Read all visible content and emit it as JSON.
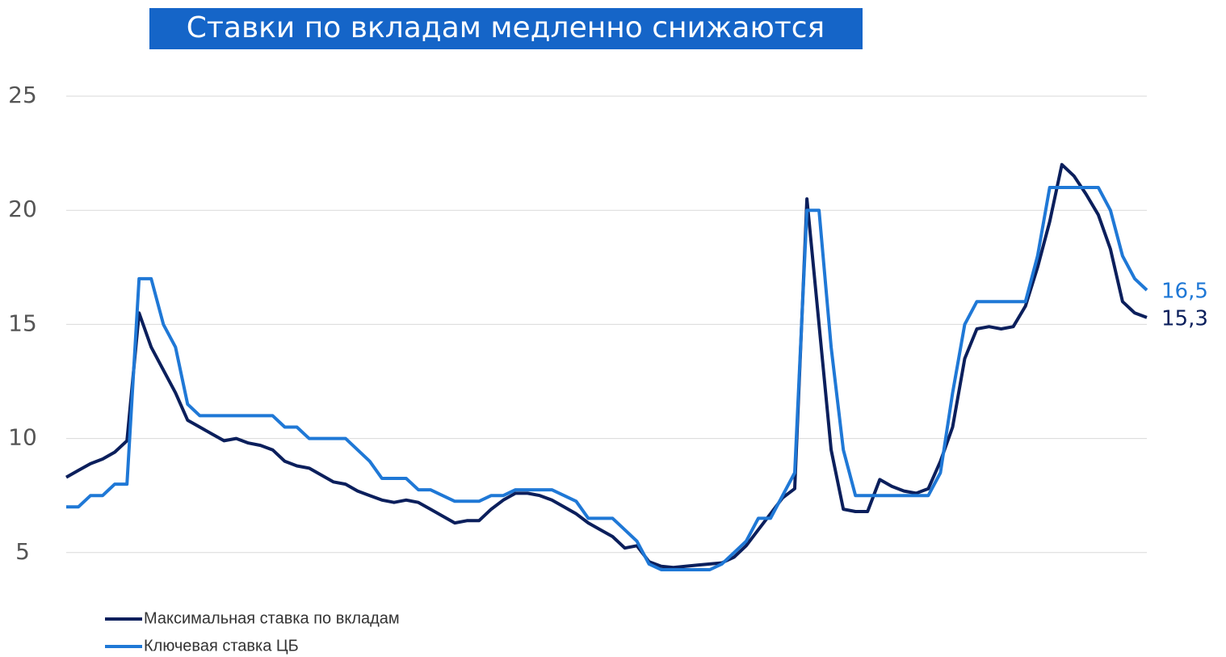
{
  "chart_data": {
    "type": "line",
    "title": "Ставки по вкладам медленно снижаются",
    "ylim": [
      0,
      25
    ],
    "yticks": [
      5,
      10,
      15,
      20,
      25
    ],
    "grid": true,
    "legend": "bottom-left",
    "series": [
      {
        "name": "Максимальная ставка по вкладам",
        "color": "#0b1f5c",
        "values": [
          8.3,
          8.6,
          8.9,
          9.1,
          9.4,
          9.9,
          15.5,
          14,
          13,
          12,
          10.8,
          10.5,
          10.2,
          9.9,
          10,
          9.8,
          9.7,
          9.5,
          9,
          8.8,
          8.7,
          8.4,
          8.1,
          8,
          7.7,
          7.5,
          7.3,
          7.2,
          7.3,
          7.2,
          6.9,
          6.6,
          6.3,
          6.4,
          6.4,
          6.9,
          7.3,
          7.6,
          7.6,
          7.5,
          7.3,
          7,
          6.7,
          6.3,
          6,
          5.7,
          5.2,
          5.3,
          4.6,
          4.4,
          4.35,
          4.4,
          4.45,
          4.5,
          4.55,
          4.8,
          5.3,
          6,
          6.7,
          7.4,
          7.8,
          20.5,
          15,
          9.5,
          6.9,
          6.8,
          6.8,
          8.2,
          7.9,
          7.7,
          7.6,
          7.8,
          9,
          10.5,
          13.5,
          14.8,
          14.9,
          14.8,
          14.9,
          15.8,
          17.5,
          19.5,
          22,
          21.5,
          20.7,
          19.8,
          18.3,
          16,
          15.5,
          15.3
        ],
        "value_labels": [
          null,
          null,
          null,
          null,
          null,
          null,
          null,
          null,
          null,
          null,
          null,
          null,
          null,
          null,
          null,
          null,
          null,
          null,
          null,
          null,
          null,
          null,
          null,
          null,
          null,
          null,
          null,
          null,
          null,
          null,
          null,
          null,
          null,
          null,
          null,
          null,
          null,
          null,
          null,
          null,
          null,
          null,
          null,
          null,
          null,
          null,
          null,
          null,
          null,
          null,
          null,
          null,
          null,
          null,
          null,
          null,
          null,
          null,
          null,
          null,
          null,
          null,
          null,
          null,
          null,
          null,
          null,
          null,
          null,
          null,
          null,
          null,
          null,
          null,
          null,
          null,
          null,
          null,
          null,
          null,
          null,
          null,
          null,
          null,
          null,
          null,
          null,
          null,
          null,
          "15,3"
        ]
      },
      {
        "name": "Ключевая ставка ЦБ",
        "color": "#1f78d6",
        "values": [
          7,
          7,
          7.5,
          7.5,
          8,
          8,
          17,
          17,
          15,
          14,
          11.5,
          11,
          11,
          11,
          11,
          11,
          11,
          11,
          10.5,
          10.5,
          10,
          10,
          10,
          10,
          9.5,
          9,
          8.25,
          8.25,
          8.25,
          7.75,
          7.75,
          7.5,
          7.25,
          7.25,
          7.25,
          7.5,
          7.5,
          7.75,
          7.75,
          7.75,
          7.75,
          7.5,
          7.25,
          6.5,
          6.5,
          6.5,
          6,
          5.5,
          4.5,
          4.25,
          4.25,
          4.25,
          4.25,
          4.25,
          4.5,
          5,
          5.5,
          6.5,
          6.5,
          7.5,
          8.5,
          20,
          20,
          14,
          9.5,
          7.5,
          7.5,
          7.5,
          7.5,
          7.5,
          7.5,
          7.5,
          8.5,
          12,
          15,
          16,
          16,
          16,
          16,
          16,
          18,
          21,
          21,
          21,
          21,
          21,
          20,
          18,
          17,
          16.5
        ],
        "value_labels": [
          null,
          null,
          null,
          null,
          null,
          null,
          null,
          null,
          null,
          null,
          null,
          null,
          null,
          null,
          null,
          null,
          null,
          null,
          null,
          null,
          null,
          null,
          null,
          null,
          null,
          null,
          null,
          null,
          null,
          null,
          null,
          null,
          null,
          null,
          null,
          null,
          null,
          null,
          null,
          null,
          null,
          null,
          null,
          null,
          null,
          null,
          null,
          null,
          null,
          null,
          null,
          null,
          null,
          null,
          null,
          null,
          null,
          null,
          null,
          null,
          null,
          null,
          null,
          null,
          null,
          null,
          null,
          null,
          null,
          null,
          null,
          null,
          null,
          null,
          null,
          null,
          null,
          null,
          null,
          null,
          null,
          null,
          null,
          null,
          null,
          null,
          null,
          null,
          null,
          "16,5"
        ]
      }
    ]
  }
}
